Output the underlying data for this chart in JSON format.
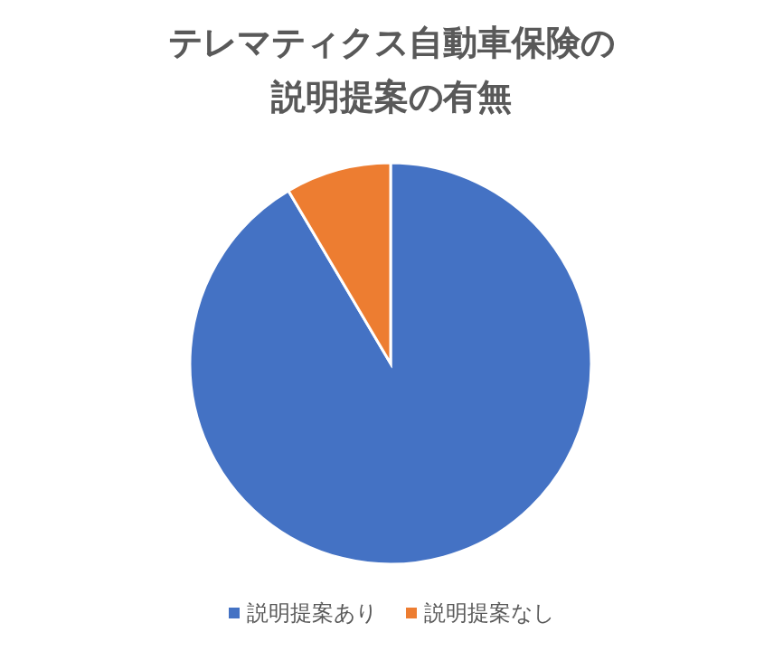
{
  "chart_data": {
    "type": "pie",
    "title": "テレマティクス自動車保険の説明提案の有無",
    "categories": [
      "説明提案あり",
      "説明提案なし"
    ],
    "values": [
      91.5,
      8.5
    ],
    "colors": [
      "#4472c4",
      "#ed7d31"
    ],
    "legend": "bottom"
  }
}
